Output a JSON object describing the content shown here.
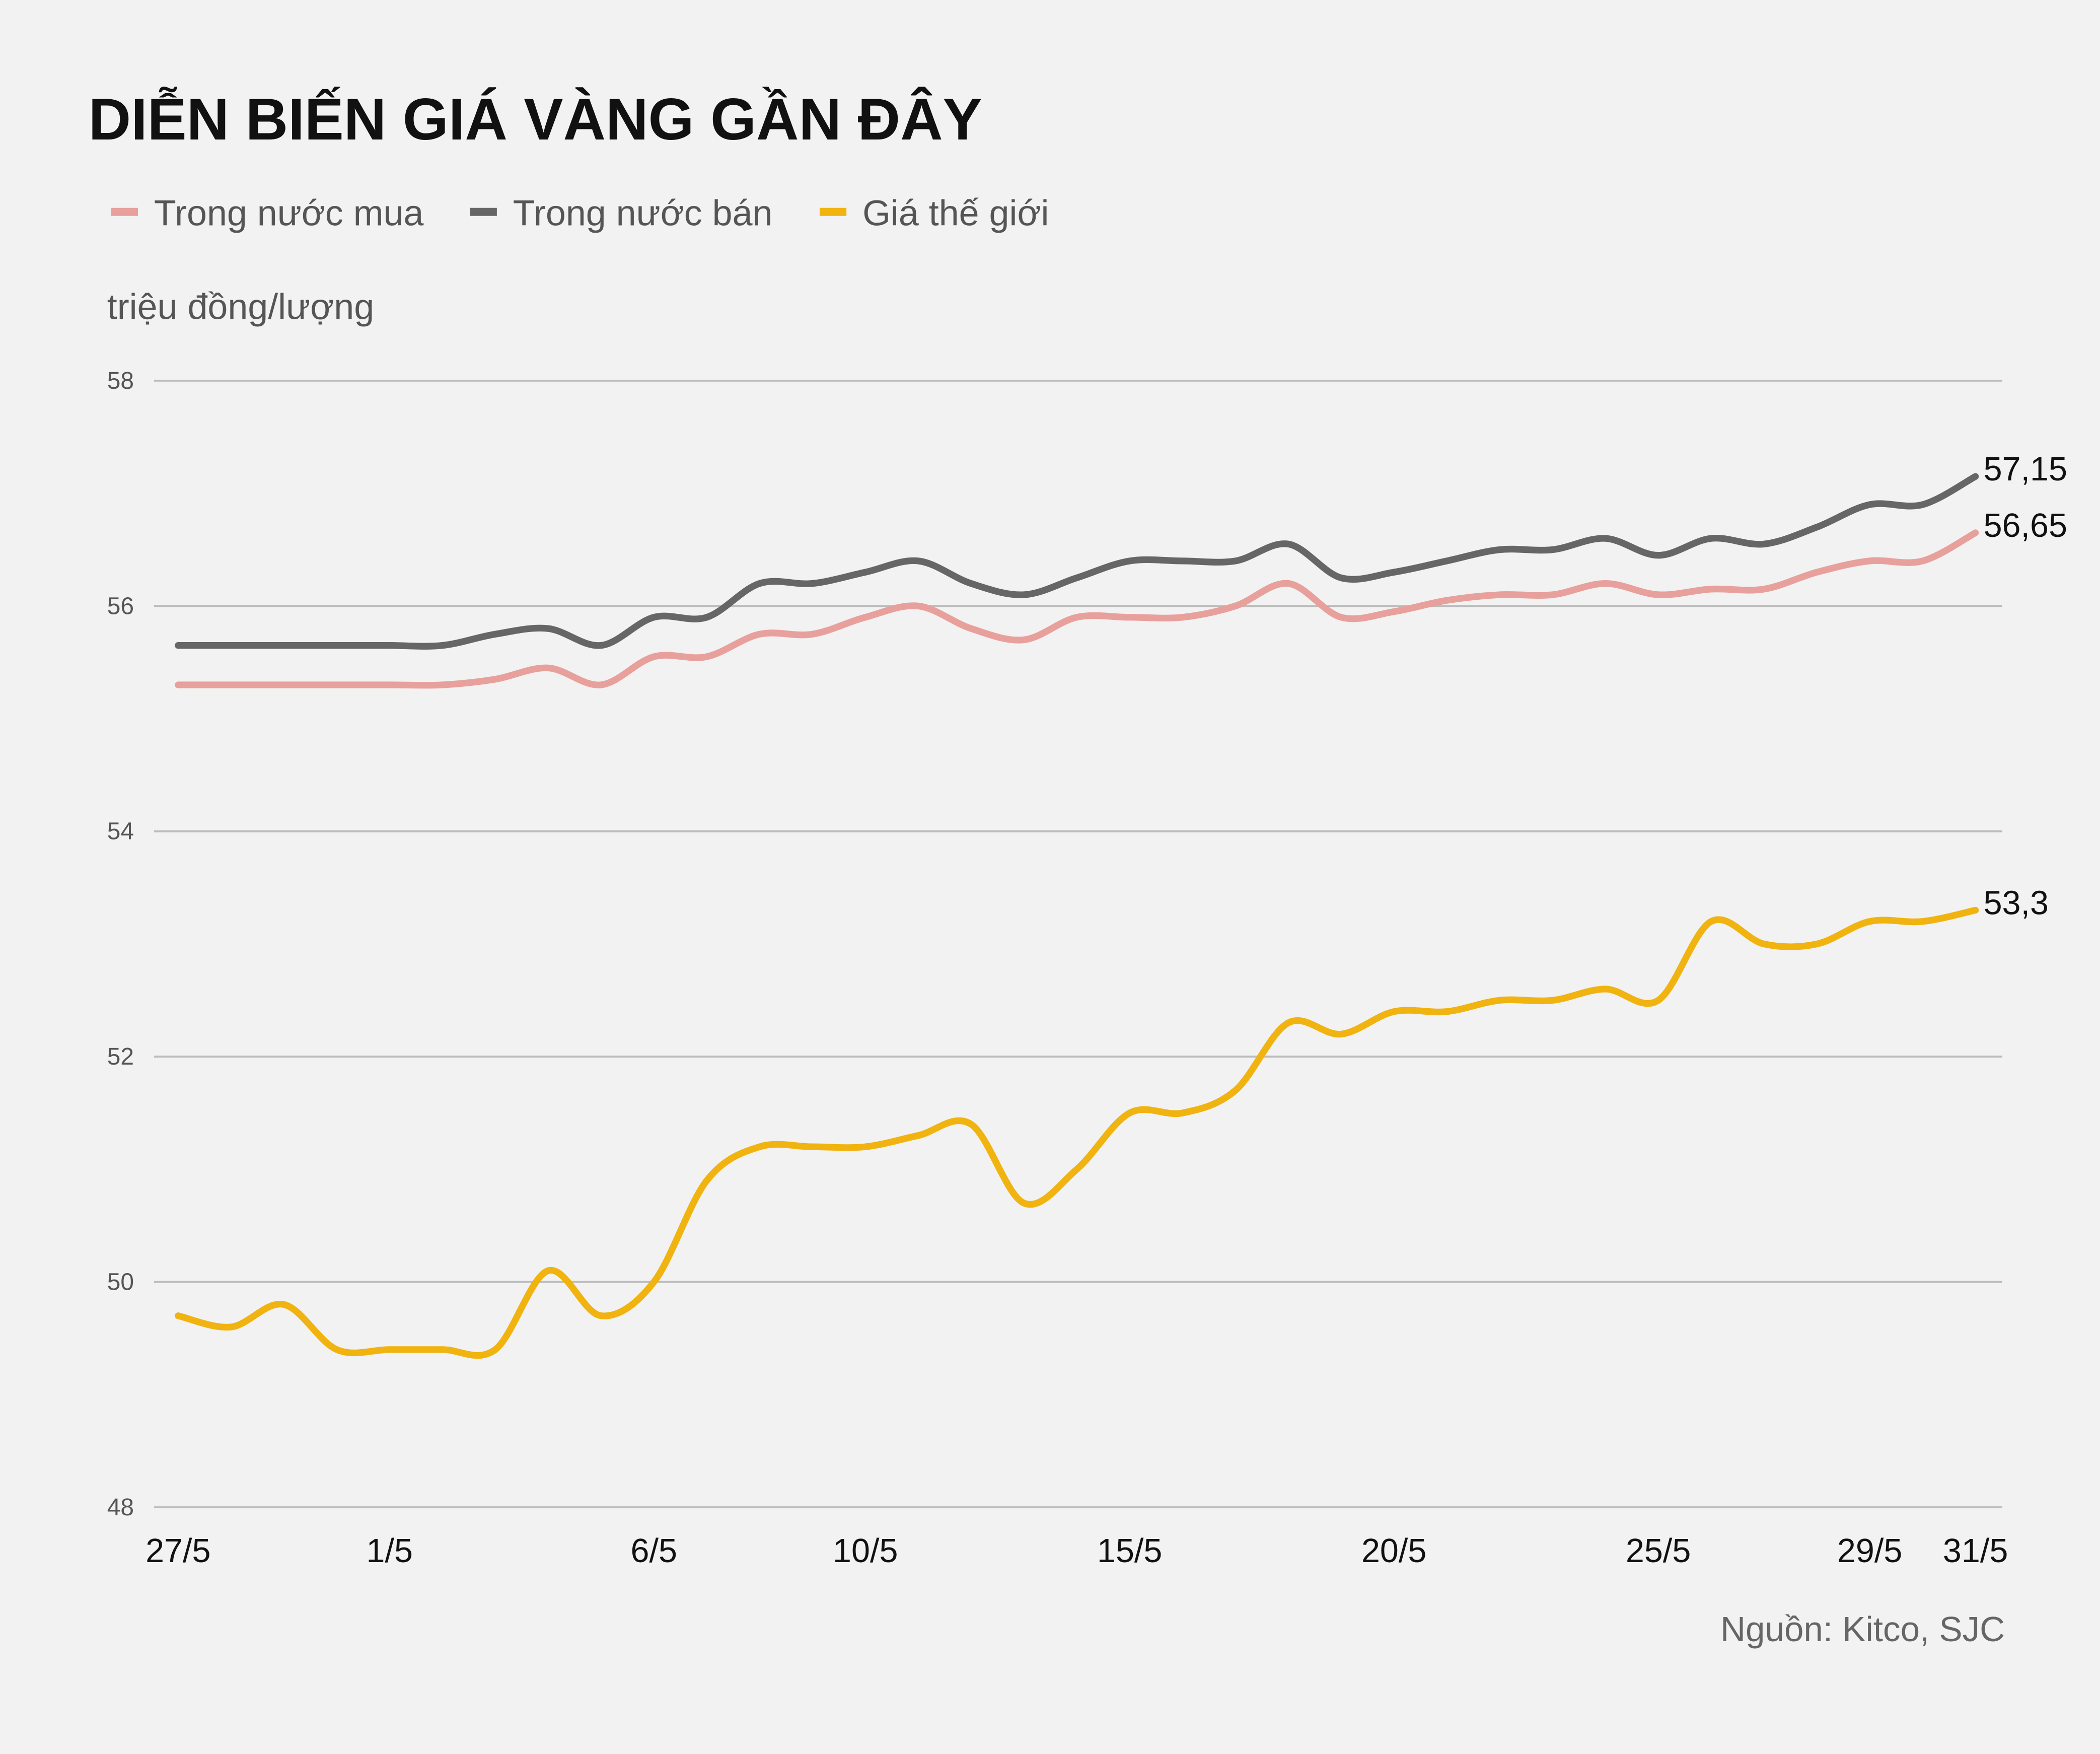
{
  "chart_data": {
    "type": "line",
    "title": "DIỄN BIẾN GIÁ VÀNG GẦN ĐÂY",
    "y_axis_label": "triệu đồng/lượng",
    "source": "Nguồn: Kitco, SJC",
    "categories": [
      "27/5",
      null,
      null,
      null,
      "1/5",
      null,
      null,
      null,
      null,
      "6/5",
      null,
      null,
      null,
      "10/5",
      null,
      null,
      null,
      null,
      "15/5",
      null,
      null,
      null,
      null,
      "20/5",
      null,
      null,
      null,
      null,
      "25/5",
      null,
      null,
      null,
      "29/5",
      null,
      "31/5"
    ],
    "series": [
      {
        "name": "Trong nước mua",
        "color": "#e8a09c",
        "values": [
          55.3,
          55.3,
          55.3,
          55.3,
          55.3,
          55.3,
          55.35,
          55.45,
          55.3,
          55.55,
          55.55,
          55.75,
          55.75,
          55.9,
          56.0,
          55.8,
          55.7,
          55.9,
          55.9,
          55.9,
          56.0,
          56.2,
          55.9,
          55.95,
          56.05,
          56.1,
          56.1,
          56.2,
          56.1,
          56.15,
          56.15,
          56.3,
          56.4,
          56.4,
          56.65
        ],
        "value_labels": [
          null,
          null,
          null,
          null,
          null,
          null,
          null,
          null,
          null,
          null,
          null,
          null,
          null,
          null,
          null,
          null,
          null,
          null,
          null,
          null,
          null,
          null,
          null,
          null,
          null,
          null,
          null,
          null,
          null,
          null,
          null,
          null,
          null,
          null,
          "56,65"
        ]
      },
      {
        "name": "Trong nước bán",
        "color": "#666666",
        "values": [
          55.65,
          55.65,
          55.65,
          55.65,
          55.65,
          55.65,
          55.75,
          55.8,
          55.65,
          55.9,
          55.9,
          56.2,
          56.2,
          56.3,
          56.4,
          56.2,
          56.1,
          56.25,
          56.4,
          56.4,
          56.4,
          56.55,
          56.25,
          56.3,
          56.4,
          56.5,
          56.5,
          56.6,
          56.45,
          56.6,
          56.55,
          56.7,
          56.9,
          56.9,
          57.15
        ],
        "value_labels": [
          null,
          null,
          null,
          null,
          null,
          null,
          null,
          null,
          null,
          null,
          null,
          null,
          null,
          null,
          null,
          null,
          null,
          null,
          null,
          null,
          null,
          null,
          null,
          null,
          null,
          null,
          null,
          null,
          null,
          null,
          null,
          null,
          null,
          null,
          "57,15"
        ]
      },
      {
        "name": "Giá thế giới",
        "color": "#f0b30f",
        "values": [
          49.7,
          49.6,
          49.8,
          49.4,
          49.4,
          49.4,
          49.4,
          50.1,
          49.7,
          50.0,
          50.9,
          51.2,
          51.2,
          51.2,
          51.3,
          51.4,
          50.7,
          51.0,
          51.5,
          51.5,
          51.7,
          52.3,
          52.2,
          52.4,
          52.4,
          52.5,
          52.5,
          52.6,
          52.5,
          53.2,
          53.0,
          53.0,
          53.2,
          53.2,
          53.3
        ],
        "value_labels": [
          null,
          null,
          null,
          null,
          null,
          null,
          null,
          null,
          null,
          null,
          null,
          null,
          null,
          null,
          null,
          null,
          null,
          null,
          null,
          null,
          null,
          null,
          null,
          null,
          null,
          null,
          null,
          null,
          null,
          null,
          null,
          null,
          null,
          null,
          "53,3"
        ]
      }
    ],
    "ylim": [
      48,
      58
    ],
    "yticks": [
      48,
      50,
      52,
      54,
      56,
      58
    ],
    "grid": true
  }
}
